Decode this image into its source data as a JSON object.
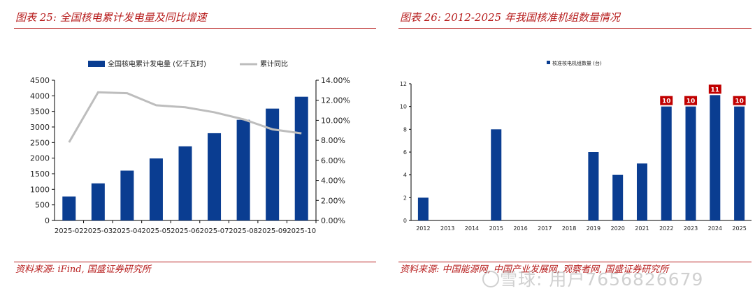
{
  "left": {
    "title": "图表 25:  全国核电累计发电量及同比增速",
    "source": "资料来源:  iFind, 国盛证券研究所"
  },
  "right": {
    "title": "图表 26:  2012-2025 年我国核准机组数量情况",
    "source": "资料来源:  中国能源网, 中国产业发展网, 观察者网, 国盛证券研究所"
  },
  "watermark": "雪球: 用户7656826679",
  "colors": {
    "accent": "#b71c1c",
    "bar": "#0a3d91",
    "line": "#bdbdbd",
    "label_box": "#c00000"
  },
  "chart_data": [
    {
      "type": "bar",
      "categories": [
        "2025-02",
        "2025-03",
        "2025-04",
        "2025-05",
        "2025-06",
        "2025-07",
        "2025-08",
        "2025-09",
        "2025-10"
      ],
      "series": [
        {
          "name": "全国核电累计发电量 (亿千瓦时)",
          "type": "bar",
          "axis": "left",
          "values": [
            770,
            1190,
            1600,
            1990,
            2380,
            2800,
            3230,
            3590,
            3970
          ]
        },
        {
          "name": "累计同比",
          "type": "line",
          "axis": "right",
          "values": [
            7.8,
            12.8,
            12.7,
            11.5,
            11.3,
            10.8,
            10.1,
            9.1,
            8.7
          ]
        }
      ],
      "ylim": [
        0,
        4500
      ],
      "yticks": [
        "0",
        "500",
        "1000",
        "1500",
        "2000",
        "2500",
        "3000",
        "3500",
        "4000",
        "4500"
      ],
      "y2lim": [
        0,
        14
      ],
      "y2ticks": [
        "0.00%",
        "2.00%",
        "4.00%",
        "6.00%",
        "8.00%",
        "10.00%",
        "12.00%",
        "14.00%"
      ],
      "grid": false,
      "legend": "top"
    },
    {
      "type": "bar",
      "categories": [
        "2012",
        "2013",
        "2014",
        "2015",
        "2016",
        "2017",
        "2018",
        "2019",
        "2020",
        "2021",
        "2022",
        "2023",
        "2024",
        "2025"
      ],
      "series": [
        {
          "name": "核准核电机组数量 (台)",
          "values": [
            2,
            0,
            0,
            8,
            0,
            0,
            0,
            6,
            4,
            5,
            10,
            10,
            11,
            10
          ]
        }
      ],
      "ylim": [
        0,
        12
      ],
      "yticks": [
        "0",
        "2",
        "4",
        "6",
        "8",
        "10",
        "12"
      ],
      "labeled": [
        {
          "index": 10,
          "label": "10"
        },
        {
          "index": 11,
          "label": "10"
        },
        {
          "index": 12,
          "label": "11"
        },
        {
          "index": 13,
          "label": "10"
        }
      ],
      "grid": false,
      "legend": "top"
    }
  ]
}
